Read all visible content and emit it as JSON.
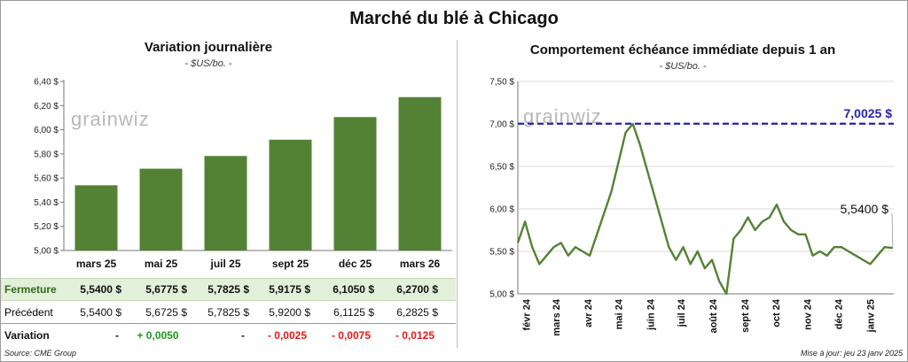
{
  "title": "Marché du blé à Chicago",
  "watermark": "grainwiz",
  "left_panel": {
    "title": "Variation journalière",
    "unit": "- $US/bo. -"
  },
  "right_panel": {
    "title": "Comportement échéance immédiate depuis 1 an",
    "unit": "- $US/bo. -",
    "max_label": "7,0025 $",
    "last_label": "5,5400 $"
  },
  "table": {
    "rows": [
      {
        "label": "Fermeture",
        "values": [
          "5,5400  $",
          "5,6775  $",
          "5,7825  $",
          "5,9175  $",
          "6,1050  $",
          "6,2700  $"
        ]
      },
      {
        "label": "Précédent",
        "values": [
          "5,5400  $",
          "5,6725  $",
          "5,7825  $",
          "5,9200  $",
          "6,1125  $",
          "6,2825  $"
        ]
      }
    ],
    "variation_label": "Variation",
    "variations": [
      "-",
      "+ 0,0050",
      "-",
      "- 0,0025",
      "- 0,0075",
      "- 0,0125"
    ]
  },
  "footer": {
    "source": "Source: CME Group",
    "updated": "Mise à jour: jeu 23 janv 2025"
  },
  "chart_data": [
    {
      "type": "bar",
      "title": "Variation journalière",
      "categories": [
        "mars 25",
        "mai 25",
        "juil 25",
        "sept 25",
        "déc 25",
        "mars 26"
      ],
      "values": [
        5.54,
        5.6775,
        5.7825,
        5.9175,
        6.105,
        6.27
      ],
      "ylim": [
        5.0,
        6.4
      ],
      "yticks": [
        "5,00 $",
        "5,20 $",
        "5,40 $",
        "5,60 $",
        "5,80 $",
        "6,00 $",
        "6,20 $",
        "6,40 $"
      ],
      "ytick_values": [
        5.0,
        5.2,
        5.4,
        5.6,
        5.8,
        6.0,
        6.2,
        6.4
      ],
      "color": "#548235"
    },
    {
      "type": "line",
      "title": "Comportement échéance immédiate depuis 1 an",
      "ylim": [
        5.0,
        7.5
      ],
      "yticks": [
        "5,00 $",
        "5,50 $",
        "6,00 $",
        "6,50 $",
        "7,00 $",
        "7,50 $"
      ],
      "ytick_values": [
        5.0,
        5.5,
        6.0,
        6.5,
        7.0,
        7.5
      ],
      "xticks": [
        "févr 24",
        "mars 24",
        "avr 24",
        "mai 24",
        "juin 24",
        "juil 24",
        "août 24",
        "sept 24",
        "oct 24",
        "nov 24",
        "déc 24",
        "janv 25"
      ],
      "reference_line": 7.0025,
      "line_color": "#548235",
      "ref_color": "#2222aa",
      "x": [
        "2024-01-24",
        "2024-01-31",
        "2024-02-07",
        "2024-02-14",
        "2024-02-21",
        "2024-02-28",
        "2024-03-06",
        "2024-03-13",
        "2024-03-20",
        "2024-03-27",
        "2024-04-03",
        "2024-04-10",
        "2024-04-17",
        "2024-04-24",
        "2024-05-01",
        "2024-05-08",
        "2024-05-15",
        "2024-05-22",
        "2024-05-29",
        "2024-06-05",
        "2024-06-12",
        "2024-06-19",
        "2024-06-26",
        "2024-07-03",
        "2024-07-10",
        "2024-07-17",
        "2024-07-24",
        "2024-07-31",
        "2024-08-07",
        "2024-08-14",
        "2024-08-21",
        "2024-08-28",
        "2024-09-04",
        "2024-09-11",
        "2024-09-18",
        "2024-09-25",
        "2024-10-02",
        "2024-10-09",
        "2024-10-16",
        "2024-10-23",
        "2024-10-30",
        "2024-11-06",
        "2024-11-13",
        "2024-11-20",
        "2024-11-27",
        "2024-12-04",
        "2024-12-11",
        "2024-12-18",
        "2024-12-25",
        "2025-01-01",
        "2025-01-08",
        "2025-01-15",
        "2025-01-23"
      ],
      "y": [
        5.6,
        5.85,
        5.55,
        5.35,
        5.45,
        5.55,
        5.6,
        5.45,
        5.55,
        5.5,
        5.45,
        5.7,
        5.95,
        6.2,
        6.55,
        6.9,
        7.0,
        6.75,
        6.45,
        6.15,
        5.85,
        5.55,
        5.4,
        5.55,
        5.35,
        5.5,
        5.3,
        5.4,
        5.15,
        5.0,
        5.65,
        5.75,
        5.9,
        5.75,
        5.85,
        5.9,
        6.05,
        5.85,
        5.75,
        5.7,
        5.7,
        5.45,
        5.5,
        5.45,
        5.55,
        5.55,
        5.5,
        5.45,
        5.4,
        5.35,
        5.45,
        5.55,
        5.54
      ]
    }
  ]
}
